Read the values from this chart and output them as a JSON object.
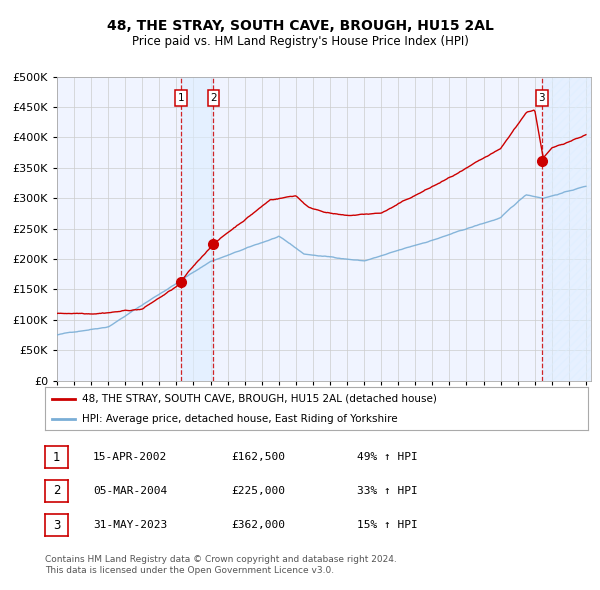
{
  "title": "48, THE STRAY, SOUTH CAVE, BROUGH, HU15 2AL",
  "subtitle": "Price paid vs. HM Land Registry's House Price Index (HPI)",
  "hpi_label": "HPI: Average price, detached house, East Riding of Yorkshire",
  "property_label": "48, THE STRAY, SOUTH CAVE, BROUGH, HU15 2AL (detached house)",
  "red_color": "#cc0000",
  "blue_color": "#7aaed6",
  "shade_color": "#ddeeff",
  "grid_color": "#cccccc",
  "bg_color": "#ffffff",
  "plot_bg": "#f0f4ff",
  "ylim": [
    0,
    500000
  ],
  "yticks": [
    0,
    50000,
    100000,
    150000,
    200000,
    250000,
    300000,
    350000,
    400000,
    450000,
    500000
  ],
  "xlim_start": 1995.3,
  "xlim_end": 2026.3,
  "xticks": [
    1995,
    1996,
    1997,
    1998,
    1999,
    2000,
    2001,
    2002,
    2003,
    2004,
    2005,
    2006,
    2007,
    2008,
    2009,
    2010,
    2011,
    2012,
    2013,
    2014,
    2015,
    2016,
    2017,
    2018,
    2019,
    2020,
    2021,
    2022,
    2023,
    2024,
    2025,
    2026
  ],
  "transactions": [
    {
      "num": 1,
      "date": "15-APR-2002",
      "year": 2002.29,
      "price": 162500,
      "pct": "49%",
      "dir": "↑"
    },
    {
      "num": 2,
      "date": "05-MAR-2004",
      "year": 2004.17,
      "price": 225000,
      "pct": "33%",
      "dir": "↑"
    },
    {
      "num": 3,
      "date": "31-MAY-2023",
      "year": 2023.41,
      "price": 362000,
      "pct": "15%",
      "dir": "↑"
    }
  ],
  "footer1": "Contains HM Land Registry data © Crown copyright and database right 2024.",
  "footer2": "This data is licensed under the Open Government Licence v3.0."
}
